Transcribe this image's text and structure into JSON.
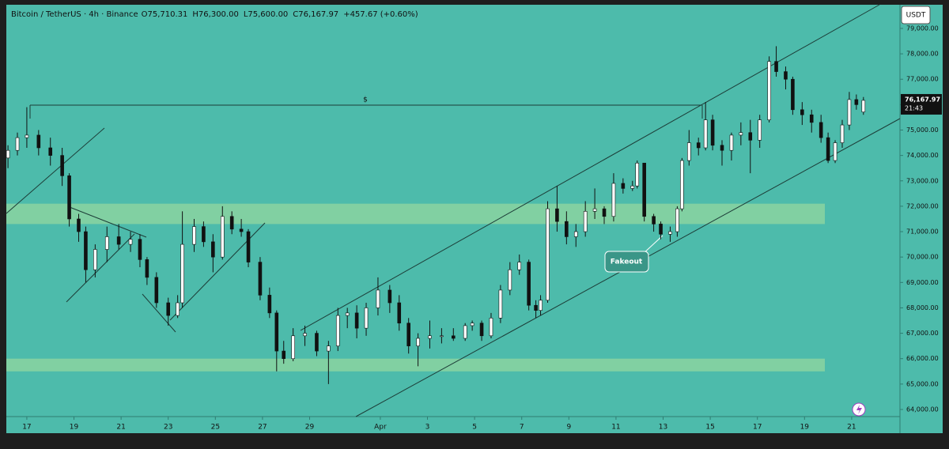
{
  "chart_data": {
    "type": "candlestick",
    "header": {
      "symbol": "Bitcoin / TetherUS · 4h · Binance",
      "ohlc": [
        "O75,710.31",
        "H76,300.00",
        "L75,600.00",
        "C76,167.97"
      ],
      "change": "+457.67 (+0.60%)"
    },
    "currency": "USDT",
    "last_price": {
      "value": 76167.97,
      "label": "76,167.97"
    },
    "countdown": "21:43",
    "level_label": "$",
    "annotation": "Fakeout",
    "up_color": "#ffffff",
    "down_color": "#111111",
    "background": "#4dbbab",
    "zone_color": "#8fd6a0",
    "zones": [
      [
        71300,
        72100
      ],
      [
        65500,
        66000
      ]
    ],
    "xlim": [
      16.13,
      54.05
    ],
    "ylim": [
      63066,
      79870
    ],
    "xticks": [
      17,
      19,
      21,
      23,
      25,
      27,
      29,
      {
        "value": 32,
        "label": "Apr"
      },
      {
        "value": 34,
        "label": "3"
      },
      {
        "value": 36,
        "label": "5"
      },
      {
        "value": 38,
        "label": "7"
      },
      {
        "value": 40,
        "label": "9"
      },
      {
        "value": 42,
        "label": "11"
      },
      {
        "value": 44,
        "label": "13"
      },
      {
        "value": 46,
        "label": "15"
      },
      {
        "value": 48,
        "label": "17"
      },
      {
        "value": 50,
        "label": "19"
      },
      {
        "value": 52,
        "label": "21"
      }
    ],
    "yticks": [
      {
        "value": 64000,
        "label": "64,000.00"
      },
      {
        "value": 65000,
        "label": "65,000.00"
      },
      {
        "value": 66000,
        "label": "66,000.00"
      },
      {
        "value": 67000,
        "label": "67,000.00"
      },
      {
        "value": 68000,
        "label": "68,000.00"
      },
      {
        "value": 69000,
        "label": "69,000.00"
      },
      {
        "value": 70000,
        "label": "70,000.00"
      },
      {
        "value": 71000,
        "label": "71,000.00"
      },
      {
        "value": 72000,
        "label": "72,000.00"
      },
      {
        "value": 73000,
        "label": "73,000.00"
      },
      {
        "value": 74000,
        "label": "74,000.00"
      },
      {
        "value": 75000,
        "label": "75,000.00"
      },
      {
        "value": 76000,
        "label": "76,000.00"
      },
      {
        "value": 77000,
        "label": "77,000.00"
      },
      {
        "value": 78000,
        "label": "78,000.00"
      },
      {
        "value": 79000,
        "label": "79,000.00"
      }
    ],
    "x": [
      16.2,
      16.6,
      17.0,
      17.5,
      18.0,
      18.5,
      18.8,
      19.2,
      19.5,
      19.9,
      20.4,
      20.9,
      21.4,
      21.8,
      22.1,
      22.5,
      23.0,
      23.4,
      23.6,
      24.1,
      24.5,
      24.9,
      25.3,
      25.7,
      26.1,
      26.4,
      26.9,
      27.3,
      27.6,
      27.9,
      28.3,
      28.8,
      29.3,
      29.8,
      30.2,
      30.6,
      31.0,
      31.4,
      31.9,
      32.4,
      32.8,
      33.2,
      33.6,
      34.1,
      34.6,
      35.1,
      35.6,
      35.9,
      36.3,
      36.7,
      37.1,
      37.5,
      37.9,
      38.3,
      38.6,
      38.8,
      39.1,
      39.5,
      39.9,
      40.3,
      40.7,
      41.1,
      41.5,
      41.9,
      42.3,
      42.7,
      42.9,
      43.2,
      43.6,
      43.9,
      44.3,
      44.6,
      44.8,
      45.1,
      45.5,
      45.8,
      46.1,
      46.5,
      46.9,
      47.3,
      47.7,
      48.1,
      48.5,
      48.8,
      49.2,
      49.5,
      49.9,
      50.3,
      50.7,
      51.0,
      51.3,
      51.6,
      51.9,
      52.2,
      52.5
    ],
    "open": [
      73900,
      74200,
      74700,
      74800,
      74300,
      74000,
      73200,
      71500,
      71000,
      69500,
      70300,
      70800,
      70500,
      70700,
      69900,
      69200,
      68200,
      67700,
      68200,
      70500,
      71200,
      70600,
      70000,
      71600,
      71100,
      71000,
      69800,
      68500,
      67800,
      66300,
      66000,
      66900,
      67000,
      66300,
      66500,
      67700,
      67800,
      67200,
      68000,
      68700,
      68200,
      67400,
      66500,
      66800,
      66900,
      66900,
      66800,
      67300,
      67400,
      66900,
      67600,
      68700,
      69500,
      69800,
      68100,
      67900,
      68300,
      71900,
      71400,
      70800,
      71000,
      71800,
      71900,
      71600,
      72900,
      72700,
      72800,
      73700,
      71600,
      71300,
      70900,
      71000,
      71900,
      73800,
      74500,
      74300,
      75400,
      74400,
      74200,
      74800,
      74900,
      74600,
      75400,
      77700,
      77300,
      77000,
      75800,
      75600,
      75300,
      74700,
      73800,
      74500,
      75200,
      76200,
      75710.31
    ],
    "high": [
      74400,
      74900,
      75900,
      75000,
      74700,
      74300,
      73300,
      71700,
      71200,
      70500,
      71200,
      71300,
      71000,
      70900,
      70000,
      69400,
      68400,
      68500,
      71800,
      71500,
      71400,
      70900,
      72000,
      71800,
      71500,
      71100,
      70000,
      68800,
      67900,
      66700,
      67200,
      67300,
      67100,
      66700,
      68000,
      68000,
      68100,
      68200,
      69200,
      68900,
      68500,
      67600,
      67000,
      67500,
      67200,
      67200,
      67400,
      67500,
      67500,
      67800,
      68900,
      69800,
      70100,
      69900,
      68300,
      68500,
      72200,
      72800,
      71800,
      71300,
      72200,
      72700,
      72000,
      73300,
      73100,
      73000,
      73800,
      73700,
      71700,
      71400,
      71200,
      72000,
      73900,
      75000,
      74700,
      76100,
      75600,
      74600,
      74900,
      75300,
      75400,
      75600,
      77900,
      78300,
      77500,
      77100,
      76100,
      75800,
      75600,
      74900,
      74600,
      75400,
      76500,
      76400,
      76300
    ],
    "low": [
      73500,
      74000,
      74300,
      74000,
      73600,
      72800,
      71200,
      70600,
      69000,
      69200,
      69800,
      70300,
      70200,
      69600,
      68900,
      68000,
      67300,
      67600,
      68000,
      70200,
      70400,
      69400,
      69900,
      70900,
      70800,
      69600,
      68300,
      67600,
      65500,
      65800,
      65900,
      66500,
      66100,
      65000,
      66300,
      67200,
      66800,
      66900,
      67700,
      67800,
      67100,
      66200,
      65700,
      66400,
      66600,
      66700,
      66700,
      67100,
      66700,
      66800,
      67400,
      68500,
      69300,
      67900,
      67600,
      67700,
      68200,
      71000,
      70500,
      70400,
      70800,
      71500,
      71300,
      71400,
      72500,
      72600,
      72700,
      71400,
      71000,
      70700,
      70600,
      70800,
      71800,
      73600,
      74000,
      74200,
      74200,
      73600,
      73800,
      74400,
      73300,
      74300,
      75300,
      77100,
      76600,
      75600,
      75200,
      74900,
      74500,
      73700,
      73700,
      74300,
      75000,
      75800,
      75600
    ],
    "close": [
      74200,
      74700,
      74800,
      74300,
      74000,
      73200,
      71500,
      71000,
      69500,
      70300,
      70800,
      70500,
      70700,
      69900,
      69200,
      68200,
      67700,
      68200,
      70500,
      71200,
      70600,
      70000,
      71600,
      71100,
      71000,
      69800,
      68500,
      67800,
      66300,
      66000,
      66900,
      67000,
      66300,
      66500,
      67700,
      67800,
      67200,
      68000,
      68700,
      68200,
      67400,
      66500,
      66800,
      66900,
      66900,
      66800,
      67300,
      67400,
      66900,
      67600,
      68700,
      69500,
      69800,
      68100,
      67900,
      68300,
      71900,
      71400,
      70800,
      71000,
      71800,
      71900,
      71600,
      72900,
      72700,
      72800,
      73700,
      71600,
      71300,
      70900,
      71000,
      71900,
      73800,
      74500,
      74300,
      75400,
      74400,
      74200,
      74800,
      74900,
      74600,
      75400,
      77700,
      77300,
      77000,
      75800,
      75600,
      75300,
      74700,
      73800,
      74500,
      75200,
      76200,
      76000,
      76167.97
    ]
  }
}
